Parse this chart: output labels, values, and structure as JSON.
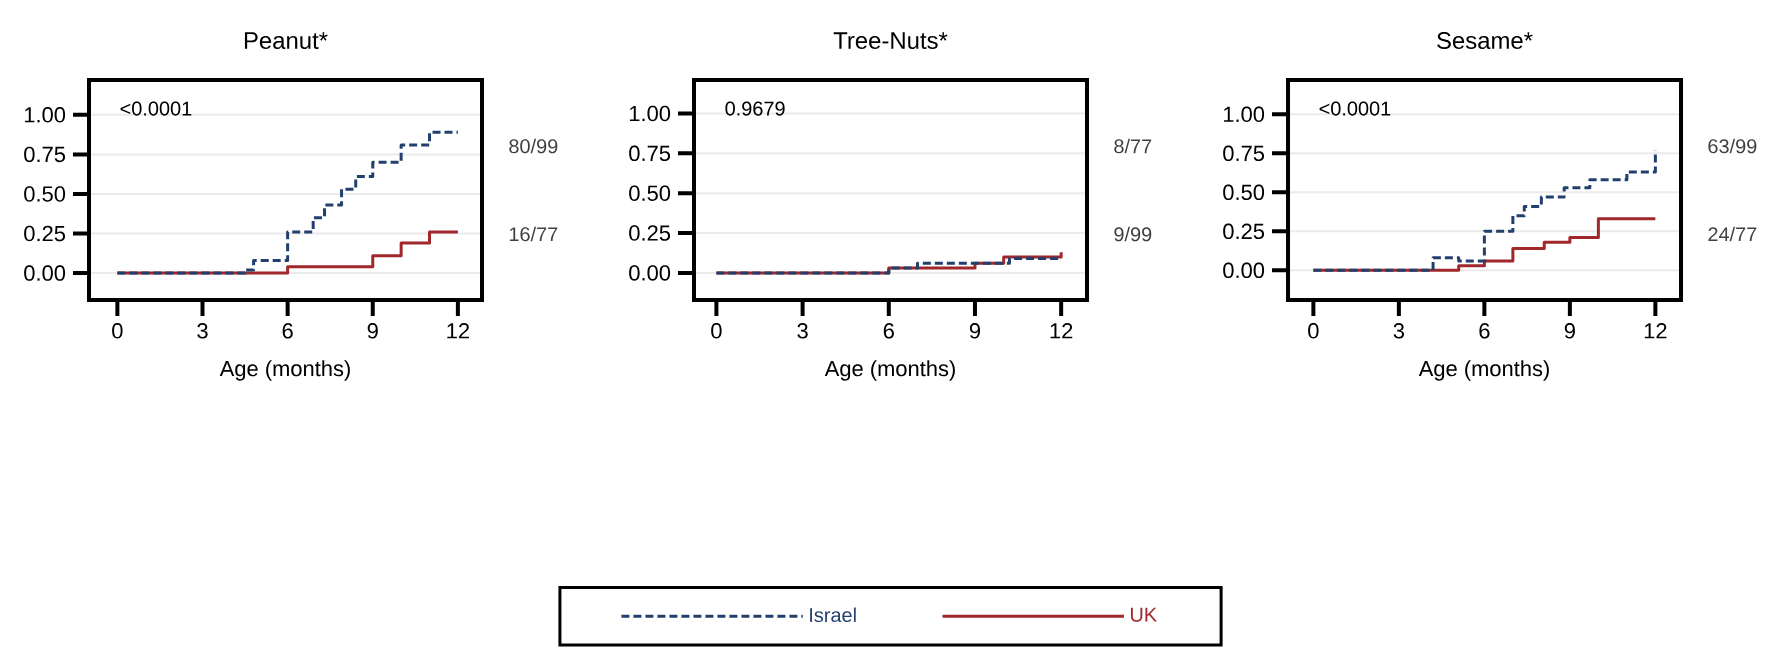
{
  "chart_data": [
    {
      "type": "step",
      "title": "Peanut*",
      "xlabel": "Age (months)",
      "annotations": [
        "<0.0001",
        "16/77",
        "80/99"
      ],
      "xlim": [
        -1,
        12.85
      ],
      "ylim": [
        -0.17,
        1.22
      ],
      "xticks": [
        0,
        3,
        6,
        9,
        12
      ],
      "yticks": [
        {
          "value": 0,
          "label": "0.00"
        },
        {
          "value": 0.25,
          "label": "0.25"
        },
        {
          "value": 0.5,
          "label": "0.50"
        },
        {
          "value": 0.75,
          "label": "0.75"
        },
        {
          "value": 1,
          "label": "1.00"
        }
      ],
      "grid": "y",
      "series": [
        {
          "color": "#22406e",
          "line_style": "dashed",
          "x": [
            0,
            4.5,
            4.8,
            6,
            6.9,
            7.3,
            7.9,
            8.4,
            9,
            10,
            11,
            12
          ],
          "values": [
            0,
            0.02,
            0.08,
            0.26,
            0.35,
            0.43,
            0.53,
            0.61,
            0.7,
            0.81,
            0.89,
            0.89
          ]
        },
        {
          "color": "#a0282d",
          "line_style": "solid",
          "x": [
            0,
            6,
            9,
            10,
            11,
            12
          ],
          "values": [
            0,
            0.04,
            0.11,
            0.19,
            0.26,
            0.26
          ]
        }
      ]
    },
    {
      "type": "step",
      "title": "Tree-Nuts*",
      "xlabel": "Age (months)",
      "annotations": [
        "0.9679",
        "9/99",
        "8/77"
      ],
      "xlim": [
        -0.78,
        12.9
      ],
      "ylim": [
        -0.17,
        1.21
      ],
      "xticks": [
        0,
        3,
        6,
        9,
        12
      ],
      "yticks": [
        {
          "value": 0,
          "label": "0.00"
        },
        {
          "value": 0.25,
          "label": "0.25"
        },
        {
          "value": 0.5,
          "label": "0.50"
        },
        {
          "value": 0.75,
          "label": "0.75"
        },
        {
          "value": 1,
          "label": "1.00"
        }
      ],
      "grid": "y",
      "legend": "bottom",
      "series": [
        {
          "name": "Israel",
          "color": "#22406e",
          "line_style": "dashed",
          "x": [
            0,
            6,
            7,
            10.2,
            12
          ],
          "values": [
            0,
            0.03,
            0.06,
            0.09,
            0.09
          ]
        },
        {
          "name": "UK",
          "color": "#a0282d",
          "line_style": "solid",
          "x": [
            0,
            6,
            9,
            10,
            12
          ],
          "values": [
            0,
            0.03,
            0.06,
            0.1,
            0.13
          ]
        }
      ]
    },
    {
      "type": "step",
      "title": "Sesame*",
      "xlabel": "Age (months)",
      "annotations": [
        "<0.0001",
        "24/77",
        "63/99"
      ],
      "xlim": [
        -0.89,
        12.9
      ],
      "ylim": [
        -0.19,
        1.22
      ],
      "xticks": [
        0,
        3,
        6,
        9,
        12
      ],
      "yticks": [
        {
          "value": 0,
          "label": "0.00"
        },
        {
          "value": 0.25,
          "label": "0.25"
        },
        {
          "value": 0.5,
          "label": "0.50"
        },
        {
          "value": 0.75,
          "label": "0.75"
        },
        {
          "value": 1,
          "label": "1.00"
        }
      ],
      "grid": "y",
      "series": [
        {
          "color": "#22406e",
          "line_style": "dashed",
          "x": [
            0,
            4.2,
            5.1,
            6,
            7,
            7.4,
            8,
            8.8,
            9.7,
            11,
            12
          ],
          "values": [
            0,
            0.08,
            0.06,
            0.25,
            0.35,
            0.41,
            0.47,
            0.53,
            0.58,
            0.63,
            0.77
          ]
        },
        {
          "color": "#a0282d",
          "line_style": "solid",
          "x": [
            0,
            5.1,
            6,
            7,
            8.1,
            9,
            10,
            12
          ],
          "values": [
            0,
            0.03,
            0.06,
            0.14,
            0.18,
            0.21,
            0.33,
            0.33
          ]
        }
      ]
    }
  ]
}
